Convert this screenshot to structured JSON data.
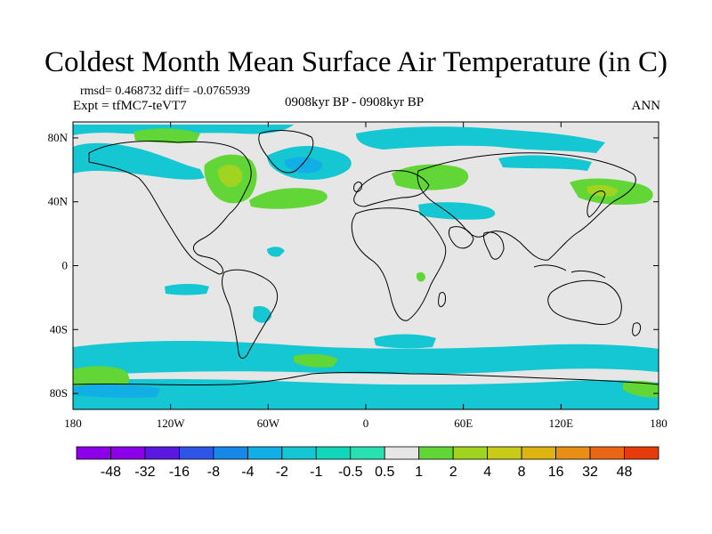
{
  "title": "Coldest Month Mean Surface Air Temperature (in C)",
  "stats": "rmsd= 0.468732 diff= -0.0765939",
  "experiment": "Expt = tfMC7-teVT7",
  "period": "0908kyr BP - 0908kyr BP",
  "season": "ANN",
  "axes": {
    "lat_ticks": [
      "80N",
      "40N",
      "0",
      "40S",
      "80S"
    ],
    "lon_ticks": [
      "180",
      "120W",
      "60W",
      "0",
      "60E",
      "120E",
      "180"
    ]
  },
  "colorbar": {
    "levels": [
      "-48",
      "-32",
      "-16",
      "-8",
      "-4",
      "-2",
      "-1",
      "-0.5",
      "0.5",
      "1",
      "2",
      "4",
      "8",
      "16",
      "32",
      "48"
    ],
    "colors": [
      "#8b00e8",
      "#5a18e0",
      "#2f55e6",
      "#1888e8",
      "#12aee6",
      "#14c7d2",
      "#12d6ba",
      "#28e0b0",
      "#e6e6e6",
      "#62d636",
      "#a0d420",
      "#c8cc18",
      "#ddb410",
      "#e88e14",
      "#e86614",
      "#e63c0c"
    ]
  },
  "colors": {
    "background": "#e6e6e6",
    "coast": "#000000",
    "neg_small": "#14c7d2",
    "neg_mid": "#12aee6",
    "pos_small": "#62d636",
    "pos_mid": "#a0d420"
  }
}
